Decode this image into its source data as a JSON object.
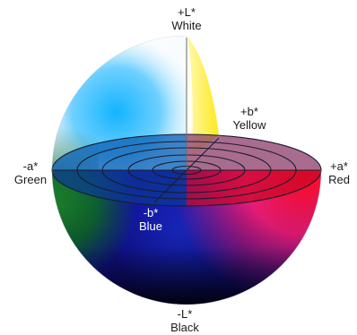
{
  "axes": {
    "top": {
      "sign": "+L*",
      "name": "White"
    },
    "bottom": {
      "sign": "-L*",
      "name": "Black"
    },
    "left": {
      "sign": "-a*",
      "name": "Green"
    },
    "right": {
      "sign": "+a*",
      "name": "Red"
    },
    "back": {
      "sign": "+b*",
      "name": "Yellow"
    },
    "front": {
      "sign": "-b*",
      "name": "Blue"
    }
  },
  "colors": {
    "white": "#ffffff",
    "black": "#000000",
    "green": "#1f8a2a",
    "red": "#ff0a1e",
    "yellow": "#fff200",
    "blue": "#1414c8",
    "cyan": "#14b4ff",
    "magenta": "#ff1e82"
  }
}
